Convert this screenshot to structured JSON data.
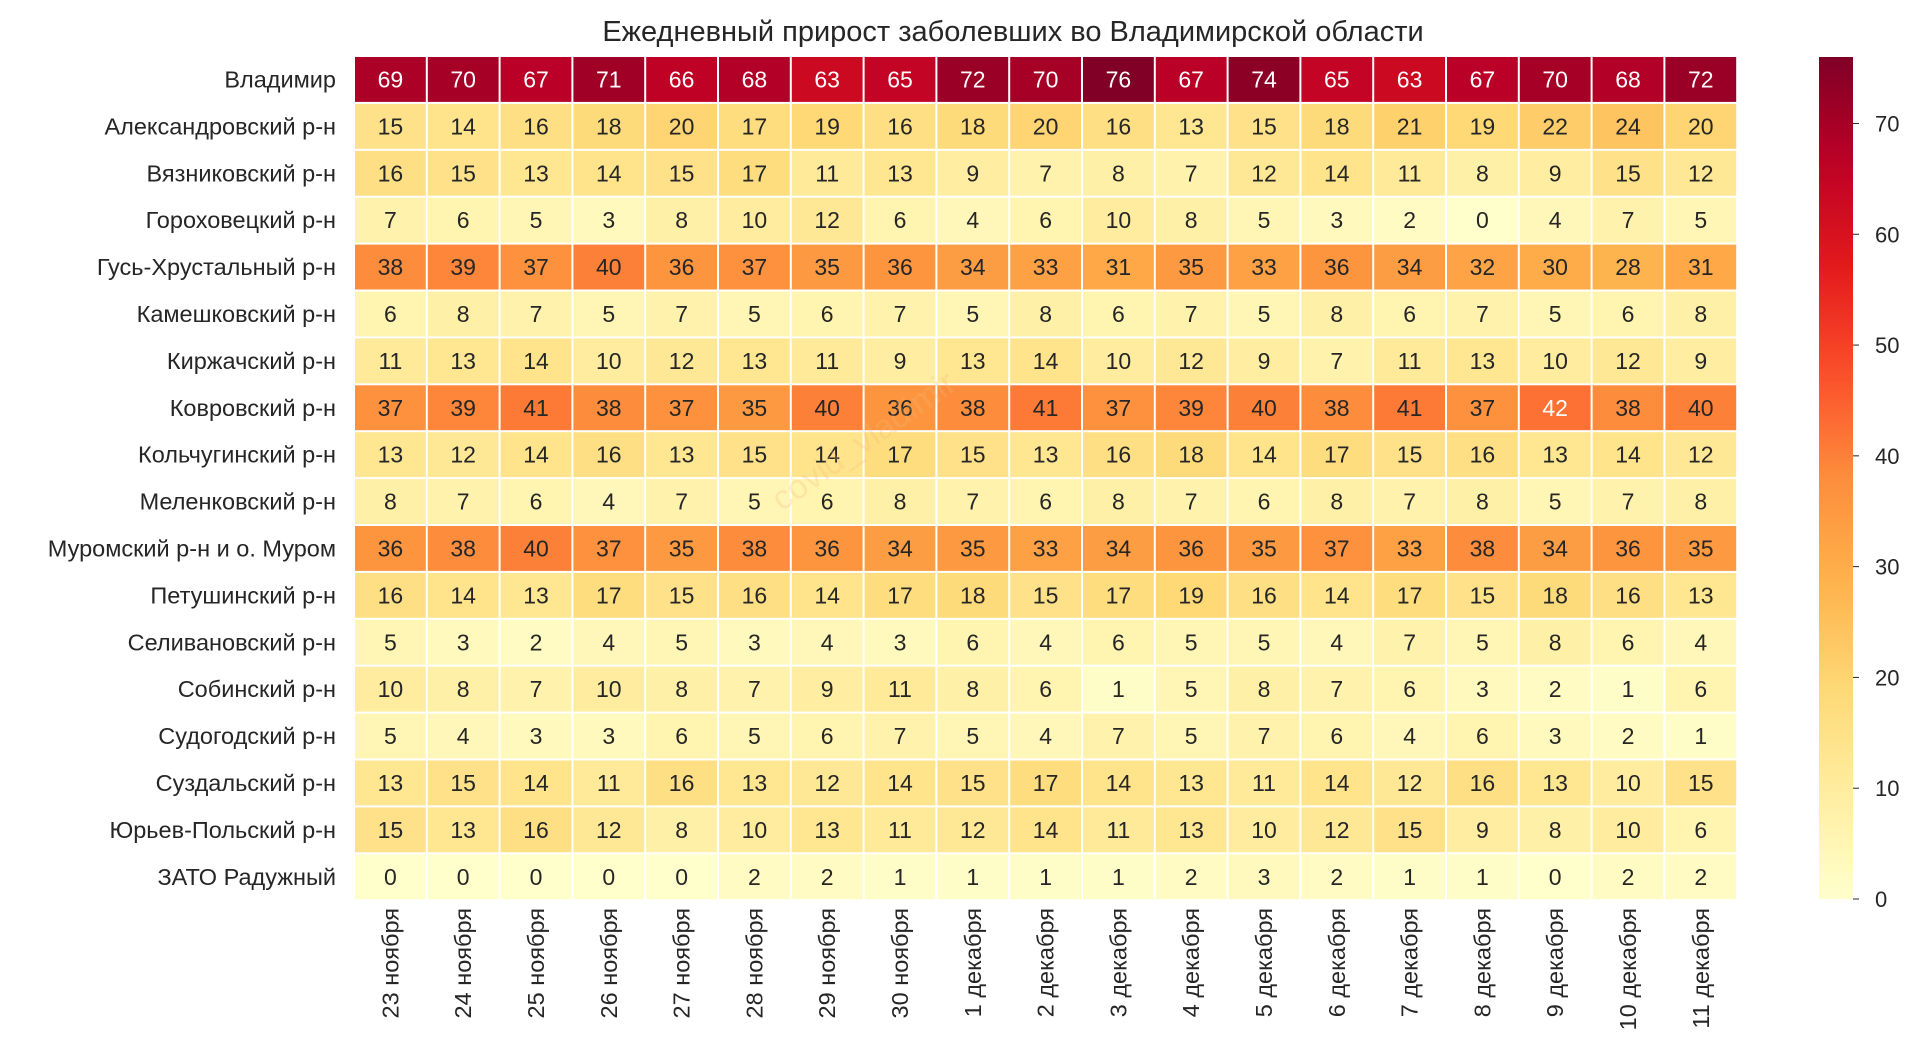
{
  "chart_data": {
    "type": "heatmap",
    "title": "Ежедневный прирост заболевших во Владимирской области",
    "watermark": "covid_vladimir",
    "xlabel": "",
    "ylabel": "",
    "colormap": "YlOrRd",
    "colorbar": {
      "vmin": 0,
      "vmax": 76,
      "ticks": [
        0,
        10,
        20,
        30,
        40,
        50,
        60,
        70
      ]
    },
    "columns": [
      "23 ноября",
      "24 ноября",
      "25 ноября",
      "26 ноября",
      "27 ноября",
      "28 ноября",
      "29 ноября",
      "30 ноября",
      "1 декабря",
      "2 декабря",
      "3 декабря",
      "4 декабря",
      "5 декабря",
      "6 декабря",
      "7 декабря",
      "8 декабря",
      "9 декабря",
      "10 декабря",
      "11 декабря"
    ],
    "rows": [
      "Владимир",
      "Александровский р-н",
      "Вязниковский р-н",
      "Гороховецкий р-н",
      "Гусь-Хрустальный р-н",
      "Камешковский р-н",
      "Киржачский р-н",
      "Ковровский р-н",
      "Кольчугинский р-н",
      "Меленковский р-н",
      "Муромский р-н и о. Муром",
      "Петушинский р-н",
      "Селивановский р-н",
      "Собинский р-н",
      "Судогодский р-н",
      "Суздальский р-н",
      "Юрьев-Польский р-н",
      "ЗАТО Радужный"
    ],
    "values": [
      [
        69,
        70,
        67,
        71,
        66,
        68,
        63,
        65,
        72,
        70,
        76,
        67,
        74,
        65,
        63,
        67,
        70,
        68,
        72
      ],
      [
        15,
        14,
        16,
        18,
        20,
        17,
        19,
        16,
        18,
        20,
        16,
        13,
        15,
        18,
        21,
        19,
        22,
        24,
        20
      ],
      [
        16,
        15,
        13,
        14,
        15,
        17,
        11,
        13,
        9,
        7,
        8,
        7,
        12,
        14,
        11,
        8,
        9,
        15,
        12
      ],
      [
        7,
        6,
        5,
        3,
        8,
        10,
        12,
        6,
        4,
        6,
        10,
        8,
        5,
        3,
        2,
        0,
        4,
        7,
        5
      ],
      [
        38,
        39,
        37,
        40,
        36,
        37,
        35,
        36,
        34,
        33,
        31,
        35,
        33,
        36,
        34,
        32,
        30,
        28,
        31
      ],
      [
        6,
        8,
        7,
        5,
        7,
        5,
        6,
        7,
        5,
        8,
        6,
        7,
        5,
        8,
        6,
        7,
        5,
        6,
        8
      ],
      [
        11,
        13,
        14,
        10,
        12,
        13,
        11,
        9,
        13,
        14,
        10,
        12,
        9,
        7,
        11,
        13,
        10,
        12,
        9
      ],
      [
        37,
        39,
        41,
        38,
        37,
        35,
        40,
        36,
        38,
        41,
        37,
        39,
        40,
        38,
        41,
        37,
        42,
        38,
        40
      ],
      [
        13,
        12,
        14,
        16,
        13,
        15,
        14,
        17,
        15,
        13,
        16,
        18,
        14,
        17,
        15,
        16,
        13,
        14,
        12
      ],
      [
        8,
        7,
        6,
        4,
        7,
        5,
        6,
        8,
        7,
        6,
        8,
        7,
        6,
        8,
        7,
        8,
        5,
        7,
        8
      ],
      [
        36,
        38,
        40,
        37,
        35,
        38,
        36,
        34,
        35,
        33,
        34,
        36,
        35,
        37,
        33,
        38,
        34,
        36,
        35
      ],
      [
        16,
        14,
        13,
        17,
        15,
        16,
        14,
        17,
        18,
        15,
        17,
        19,
        16,
        14,
        17,
        15,
        18,
        16,
        13
      ],
      [
        5,
        3,
        2,
        4,
        5,
        3,
        4,
        3,
        6,
        4,
        6,
        5,
        5,
        4,
        7,
        5,
        8,
        6,
        4
      ],
      [
        10,
        8,
        7,
        10,
        8,
        7,
        9,
        11,
        8,
        6,
        1,
        5,
        8,
        7,
        6,
        3,
        2,
        1,
        6
      ],
      [
        5,
        4,
        3,
        3,
        6,
        5,
        6,
        7,
        5,
        4,
        7,
        5,
        7,
        6,
        4,
        6,
        3,
        2,
        1
      ],
      [
        13,
        15,
        14,
        11,
        16,
        13,
        12,
        14,
        15,
        17,
        14,
        13,
        11,
        14,
        12,
        16,
        13,
        10,
        15
      ],
      [
        15,
        13,
        16,
        12,
        8,
        10,
        13,
        11,
        12,
        14,
        11,
        13,
        10,
        12,
        15,
        9,
        8,
        10,
        6
      ],
      [
        0,
        0,
        0,
        0,
        0,
        2,
        2,
        1,
        1,
        1,
        1,
        2,
        3,
        2,
        1,
        1,
        0,
        2,
        2
      ]
    ]
  }
}
